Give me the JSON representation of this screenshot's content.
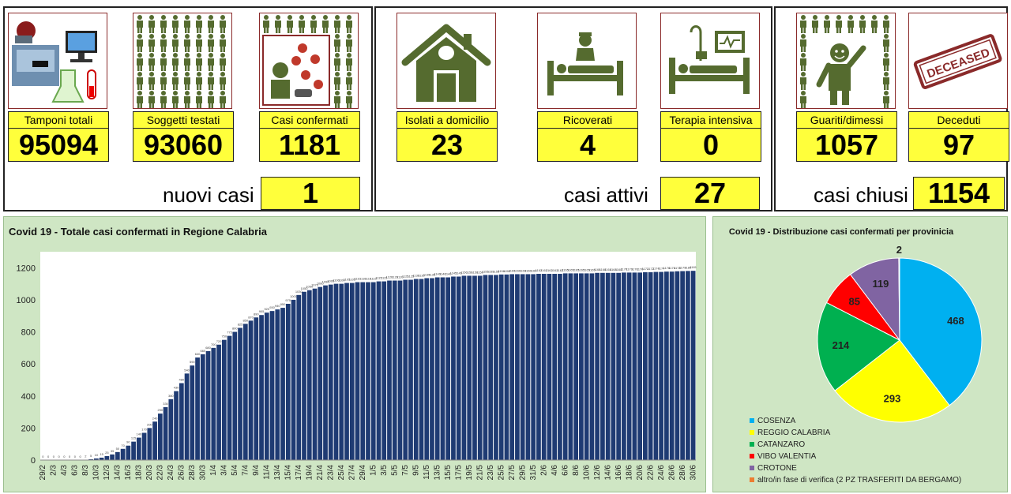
{
  "colors": {
    "yellow": "#ffff3b",
    "figure": "#556b2f",
    "bar": "#1f3b73",
    "panel": "#cfe6c4"
  },
  "tests_panel": {
    "tiles": [
      {
        "label": "Tamponi totali",
        "value": "95094",
        "icon": "laboratory-icon"
      },
      {
        "label": "Soggetti testati",
        "value": "93060",
        "icon": "people-grid-icon"
      },
      {
        "label": "Casi confermati",
        "value": "1181",
        "icon": "virus-patient-icon"
      }
    ],
    "summary_label": "nuovi casi",
    "summary_value": "1"
  },
  "active_panel": {
    "tiles": [
      {
        "label": "Isolati a domicilio",
        "value": "23",
        "icon": "house-icon"
      },
      {
        "label": "Ricoverati",
        "value": "4",
        "icon": "hospital-bed-icon"
      },
      {
        "label": "Terapia intensiva",
        "value": "0",
        "icon": "intensive-care-icon"
      }
    ],
    "summary_label": "casi attivi",
    "summary_value": "27"
  },
  "closed_panel": {
    "tiles": [
      {
        "label": "Guariti/dimessi",
        "value": "1057",
        "icon": "recovered-person-icon"
      },
      {
        "label": "Deceduti",
        "value": "97",
        "icon": "deceased-stamp-icon"
      }
    ],
    "summary_label": "casi chiusi",
    "summary_value": "1154",
    "stamp_text": "DECEASED"
  },
  "chart_data": [
    {
      "type": "bar",
      "title": "Covid 19 - Totale casi confermati in Regione Calabria",
      "xlabel": "",
      "ylabel": "",
      "ylim": [
        0,
        1300
      ],
      "yticks": [
        0,
        200,
        400,
        600,
        800,
        1000,
        1200
      ],
      "grid": false,
      "x_tick_labels": [
        "29/2",
        "2/3",
        "4/3",
        "6/3",
        "8/3",
        "10/3",
        "12/3",
        "14/3",
        "16/3",
        "18/3",
        "20/3",
        "22/3",
        "24/3",
        "26/3",
        "28/3",
        "30/3",
        "1/4",
        "3/4",
        "5/4",
        "7/4",
        "9/4",
        "11/4",
        "13/4",
        "15/4",
        "17/4",
        "19/4",
        "21/4",
        "23/4",
        "25/4",
        "27/4",
        "29/4",
        "1/5",
        "3/5",
        "5/5",
        "7/5",
        "9/5",
        "11/5",
        "13/5",
        "15/5",
        "17/5",
        "19/5",
        "21/5",
        "23/5",
        "25/5",
        "27/5",
        "29/5",
        "31/5",
        "2/6",
        "4/6",
        "6/6",
        "8/6",
        "10/6",
        "12/6",
        "14/6",
        "16/6",
        "18/6",
        "20/6",
        "22/6",
        "24/6",
        "26/6",
        "28/6",
        "30/6"
      ],
      "categories": [
        "29/2",
        "1/3",
        "2/3",
        "3/3",
        "4/3",
        "5/3",
        "6/3",
        "7/3",
        "8/3",
        "9/3",
        "10/3",
        "11/3",
        "12/3",
        "13/3",
        "14/3",
        "15/3",
        "16/3",
        "17/3",
        "18/3",
        "19/3",
        "20/3",
        "21/3",
        "22/3",
        "23/3",
        "24/3",
        "25/3",
        "26/3",
        "27/3",
        "28/3",
        "29/3",
        "30/3",
        "31/3",
        "1/4",
        "2/4",
        "3/4",
        "4/4",
        "5/4",
        "6/4",
        "7/4",
        "8/4",
        "9/4",
        "10/4",
        "11/4",
        "12/4",
        "13/4",
        "14/4",
        "15/4",
        "16/4",
        "17/4",
        "18/4",
        "19/4",
        "20/4",
        "21/4",
        "22/4",
        "23/4",
        "24/4",
        "25/4",
        "26/4",
        "27/4",
        "28/4",
        "29/4",
        "30/4",
        "1/5",
        "2/5",
        "3/5",
        "4/5",
        "5/5",
        "6/5",
        "7/5",
        "8/5",
        "9/5",
        "10/5",
        "11/5",
        "12/5",
        "13/5",
        "14/5",
        "15/5",
        "16/5",
        "17/5",
        "18/5",
        "19/5",
        "20/5",
        "21/5",
        "22/5",
        "23/5",
        "24/5",
        "25/5",
        "26/5",
        "27/5",
        "28/5",
        "29/5",
        "30/5",
        "31/5",
        "1/6",
        "2/6",
        "3/6",
        "4/6",
        "5/6",
        "6/6",
        "7/6",
        "8/6",
        "9/6",
        "10/6",
        "11/6",
        "12/6",
        "13/6",
        "14/6",
        "15/6",
        "16/6",
        "17/6",
        "18/6",
        "19/6",
        "20/6",
        "21/6",
        "22/6",
        "23/6",
        "24/6",
        "25/6",
        "26/6",
        "27/6",
        "28/6",
        "29/6",
        "30/6"
      ],
      "values": [
        0,
        0,
        0,
        0,
        0,
        0,
        0,
        0,
        2,
        5,
        10,
        15,
        25,
        35,
        50,
        70,
        90,
        115,
        140,
        170,
        200,
        240,
        290,
        330,
        380,
        430,
        480,
        540,
        590,
        640,
        660,
        680,
        700,
        720,
        750,
        775,
        800,
        825,
        850,
        870,
        890,
        905,
        920,
        930,
        940,
        950,
        975,
        1000,
        1030,
        1050,
        1060,
        1070,
        1080,
        1090,
        1095,
        1100,
        1100,
        1105,
        1105,
        1110,
        1110,
        1110,
        1110,
        1115,
        1115,
        1120,
        1120,
        1120,
        1125,
        1125,
        1130,
        1130,
        1135,
        1135,
        1140,
        1140,
        1140,
        1145,
        1145,
        1150,
        1150,
        1150,
        1150,
        1155,
        1155,
        1155,
        1158,
        1158,
        1160,
        1160,
        1160,
        1160,
        1160,
        1162,
        1162,
        1162,
        1162,
        1162,
        1165,
        1165,
        1165,
        1165,
        1165,
        1165,
        1168,
        1168,
        1168,
        1168,
        1168,
        1170,
        1170,
        1170,
        1170,
        1172,
        1172,
        1174,
        1174,
        1176,
        1176,
        1178,
        1179,
        1180,
        1181
      ]
    },
    {
      "type": "pie",
      "title": "Covid 19 - Distribuzione casi confermati per provinicia",
      "categories": [
        "COSENZA",
        "REGGIO CALABRIA",
        "CATANZARO",
        "VIBO VALENTIA",
        "CROTONE",
        "altro/in fase di verifica (2 PZ TRASFERITI DA BERGAMO)"
      ],
      "values": [
        468,
        293,
        214,
        85,
        119,
        2
      ],
      "colors": [
        "#00b0f0",
        "#ffff00",
        "#00b050",
        "#ff0000",
        "#8064a2",
        "#ed7d31"
      ],
      "legend_position": "bottom-left"
    }
  ]
}
